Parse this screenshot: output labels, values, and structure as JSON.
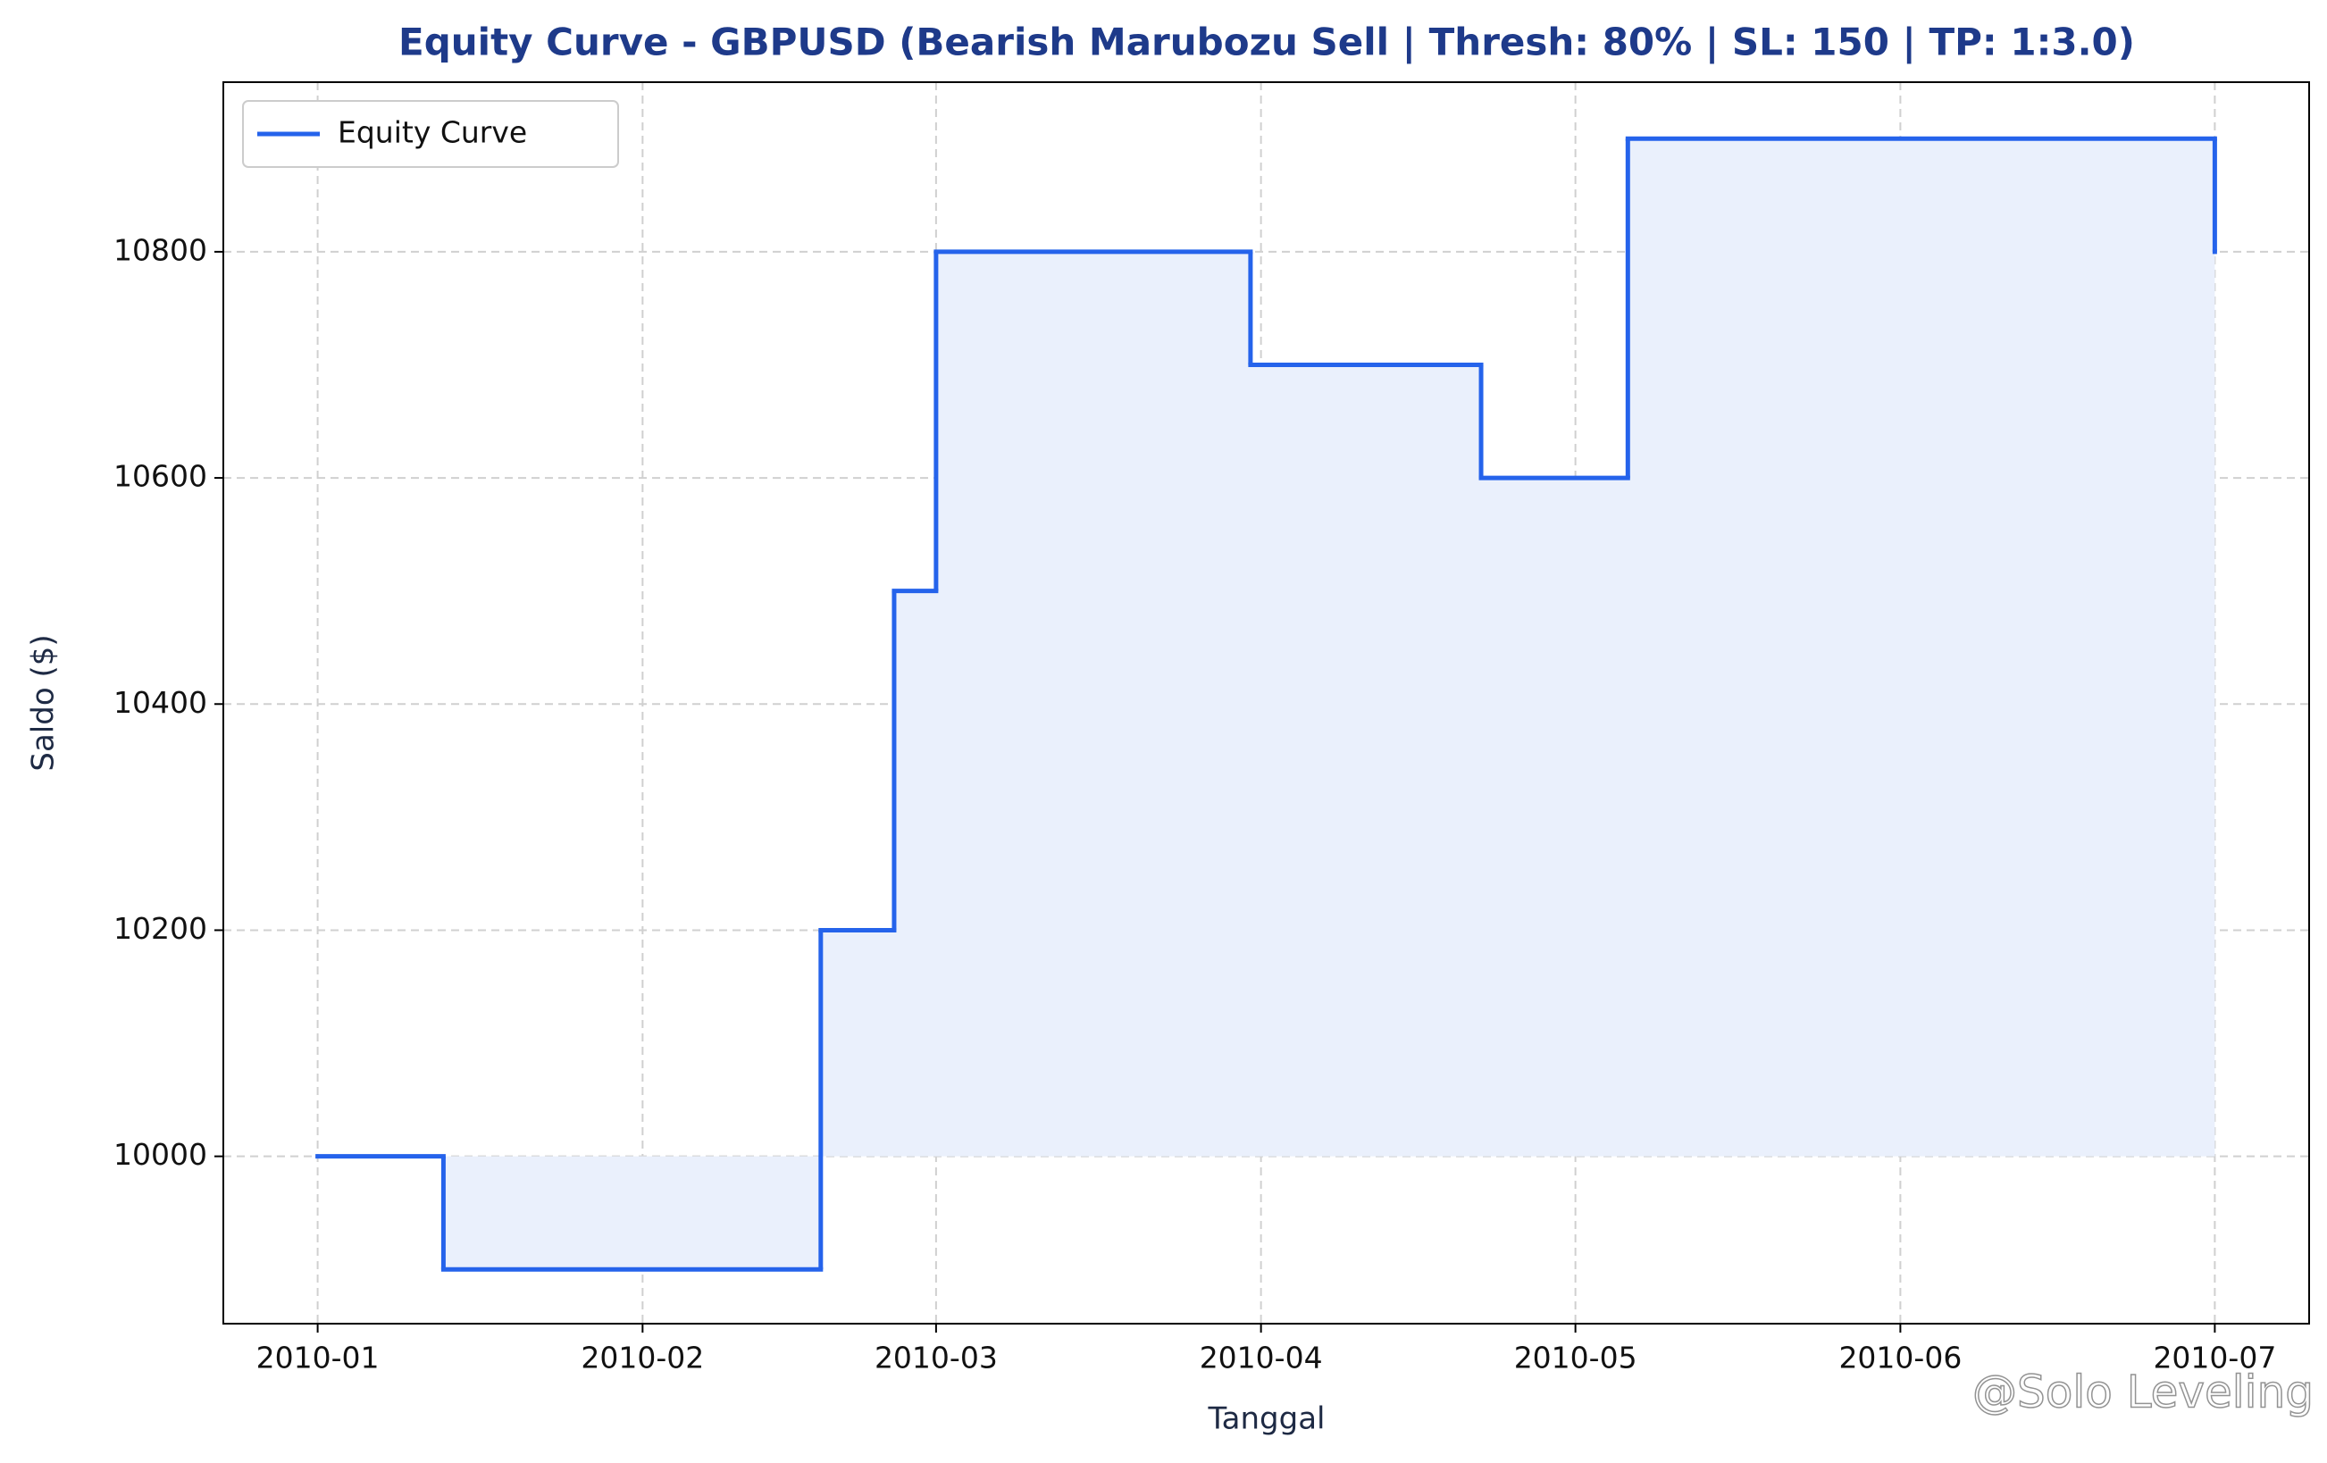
{
  "chart_data": {
    "type": "step",
    "title": "Equity Curve - GBPUSD (Bearish Marubozu Sell | Thresh: 80% | SL: 150 | TP: 1:3.0)",
    "x_label": "Tanggal",
    "y_label": "Saldo ($)",
    "x": [
      0,
      12,
      48,
      55,
      59,
      89,
      111,
      125,
      181
    ],
    "series": [
      {
        "name": "Equity Curve",
        "color": "#2563eb",
        "values": [
          10000,
          9900,
          10200,
          10500,
          10800,
          10700,
          10600,
          10900,
          10800
        ]
      }
    ],
    "fill_baseline": 10000,
    "fill_color": "#eaf0fc",
    "xlim": [
      -9,
      190
    ],
    "xticks": [
      {
        "value": 0,
        "label": "2010-01"
      },
      {
        "value": 31,
        "label": "2010-02"
      },
      {
        "value": 59,
        "label": "2010-03"
      },
      {
        "value": 90,
        "label": "2010-04"
      },
      {
        "value": 120,
        "label": "2010-05"
      },
      {
        "value": 151,
        "label": "2010-06"
      },
      {
        "value": 181,
        "label": "2010-07"
      }
    ],
    "ylim": [
      9852,
      10950
    ],
    "yticks": [
      10000,
      10200,
      10400,
      10600,
      10800
    ],
    "grid": true,
    "legend": "upper left",
    "watermark": "@Solo Leveling"
  }
}
